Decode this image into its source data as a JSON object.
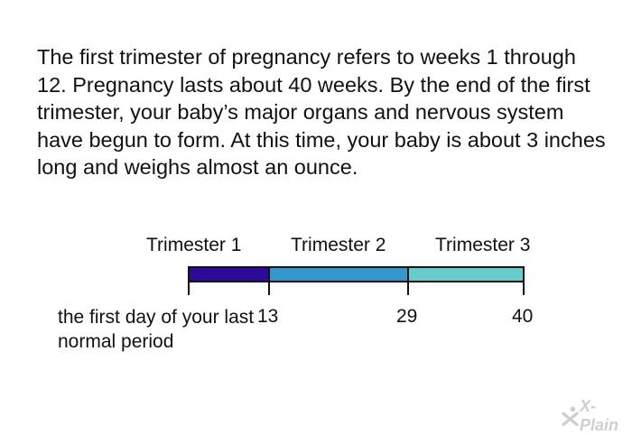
{
  "paragraph": "The first trimester of pregnancy refers to weeks 1 through 12. Pregnancy lasts about 40 weeks. By the end of the first trimester, your baby’s major organs and nervous system have begun to form. At this time, your baby is about 3 inches long and weighs almost an ounce.",
  "timeline": {
    "trimesters": [
      {
        "label": "Trimester 1",
        "color": "#2e0a99"
      },
      {
        "label": "Trimester 2",
        "color": "#3399cc"
      },
      {
        "label": "Trimester 3",
        "color": "#66cccc"
      }
    ],
    "ticks": [
      "13",
      "29",
      "40"
    ],
    "start_label": "the first day of your last normal period",
    "axis_color": "#111111"
  },
  "logo": {
    "text": "X-Plain",
    "icon": "x-plain-logo-icon",
    "color": "#cfcfcf"
  }
}
